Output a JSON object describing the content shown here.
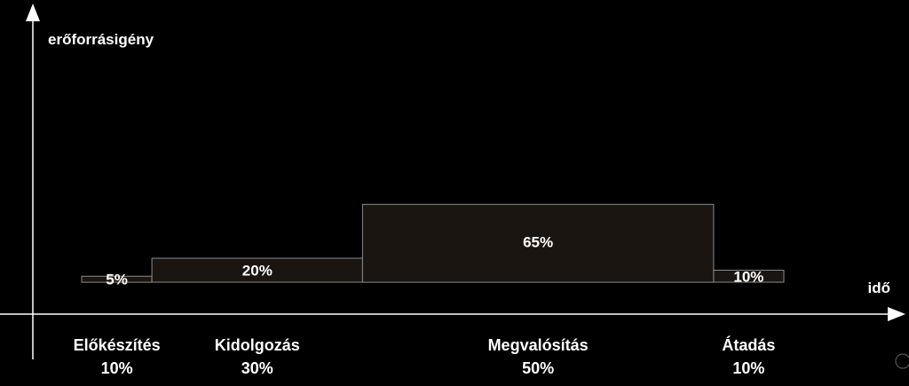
{
  "chart_data": {
    "type": "bar",
    "xlabel": "idő",
    "ylabel": "erőforrásigény",
    "x_unit": "%",
    "y_unit": "%",
    "ylim": [
      0,
      100
    ],
    "categories": [
      "Előkészítés",
      "Kidolgozás",
      "Megvalósítás",
      "Átadás"
    ],
    "time_share": [
      "10%",
      "30%",
      "50%",
      "10%"
    ],
    "time_share_values": [
      10,
      30,
      50,
      10
    ],
    "values": [
      5,
      20,
      65,
      10
    ],
    "value_labels": [
      "5%",
      "20%",
      "65%",
      "10%"
    ],
    "grid": false,
    "legend": "none",
    "colors": {
      "background": "#000000",
      "bar_fill": "#1a1510",
      "bar_stroke": "#8a8a8a",
      "axis": "#ffffff",
      "text": "#ffffff"
    }
  }
}
